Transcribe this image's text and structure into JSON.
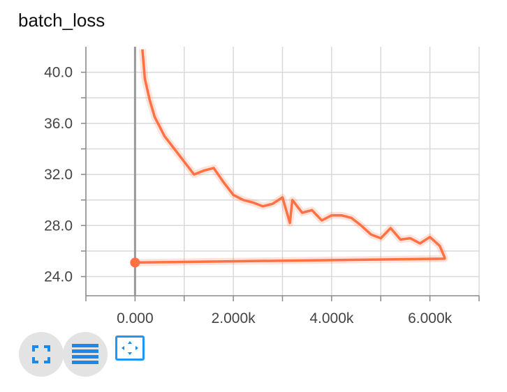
{
  "chart_data": {
    "type": "line",
    "title": "batch_loss",
    "xlabel": "",
    "ylabel": "",
    "xlim": [
      -1000,
      7000
    ],
    "ylim": [
      22.5,
      42
    ],
    "grid": true,
    "x_tick_labels": [
      "0.000",
      "2.000k",
      "4.000k",
      "6.000k"
    ],
    "x_ticks": [
      0,
      2000,
      4000,
      6000
    ],
    "y_tick_labels": [
      "24.0",
      "28.0",
      "32.0",
      "36.0",
      "40.0"
    ],
    "y_ticks": [
      24,
      28,
      32,
      36,
      40
    ],
    "series": [
      {
        "color": "#ff7043",
        "x": [
          0,
          6300,
          6300,
          6200,
          6000,
          5800,
          5600,
          5400,
          5200,
          5000,
          4800,
          4600,
          4400,
          4200,
          4000,
          3800,
          3600,
          3400,
          3200,
          3150,
          3000,
          2800,
          2600,
          2400,
          2200,
          2000,
          1800,
          1600,
          1400,
          1200,
          1000,
          800,
          600,
          400,
          300,
          200,
          150
        ],
        "y": [
          25.1,
          25.4,
          25.5,
          26.4,
          27.1,
          26.6,
          27.0,
          26.9,
          27.8,
          27.0,
          27.3,
          28.0,
          28.6,
          28.8,
          28.8,
          28.4,
          29.2,
          29.0,
          30.0,
          28.2,
          30.2,
          29.7,
          29.5,
          29.8,
          30.0,
          30.4,
          31.4,
          32.5,
          32.3,
          32.0,
          33.0,
          34.0,
          35.0,
          36.5,
          37.8,
          39.5,
          41.8
        ]
      }
    ]
  },
  "controls": {
    "fullscreen_icon": "fullscreen-icon",
    "toggle_log_icon": "lines-icon",
    "fit_domain_icon": "fit-domain-icon"
  }
}
